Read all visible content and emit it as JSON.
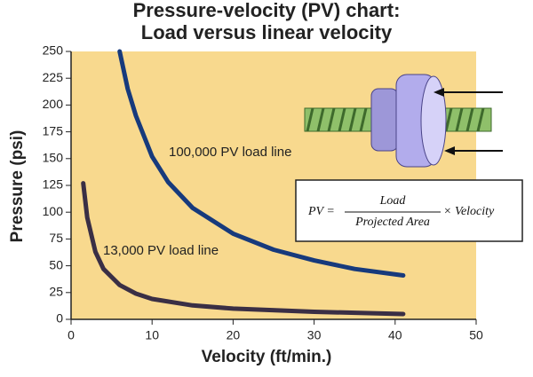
{
  "chart_data": {
    "type": "line",
    "title": [
      "Pressure-velocity (PV) chart:",
      "Load versus linear velocity"
    ],
    "x_label": "Velocity (ft/min.)",
    "y_label": "Pressure (psi)",
    "xlim": [
      0,
      50
    ],
    "xticks": [
      0,
      10,
      20,
      30,
      40,
      50
    ],
    "ylim": [
      0,
      250
    ],
    "yticks": [
      0,
      25,
      50,
      75,
      100,
      125,
      150,
      175,
      200,
      225,
      250
    ],
    "plot_background": "#f8d98e",
    "series": [
      {
        "name": "100,000 PV load line",
        "color": "#173a7c",
        "x": [
          6,
          7,
          8,
          10,
          12,
          15,
          20,
          25,
          30,
          35,
          41
        ],
        "values": [
          250,
          215,
          190,
          152,
          128,
          104,
          80,
          65,
          55,
          47,
          41
        ]
      },
      {
        "name": "13,000 PV load line",
        "color": "#3a2f45",
        "x": [
          1.5,
          2,
          3,
          4,
          6,
          8,
          10,
          15,
          20,
          30,
          41
        ],
        "values": [
          127,
          95,
          63,
          47,
          32,
          24,
          19,
          13,
          10,
          7,
          5
        ]
      }
    ],
    "formula": {
      "lhs": "PV =",
      "numerator": "Load",
      "denominator": "Projected Area",
      "rhs": "× Velocity"
    }
  }
}
